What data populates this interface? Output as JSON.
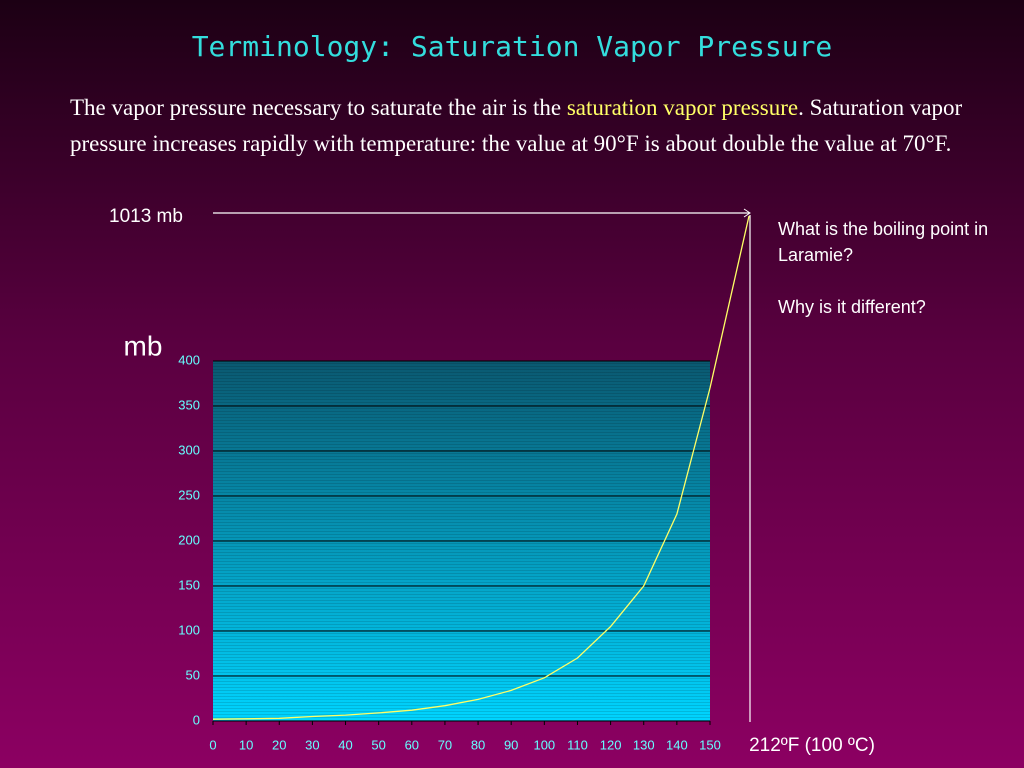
{
  "title": "Terminology: Saturation Vapor Pressure",
  "body": [
    "The vapor pressure necessary to saturate the air is the ",
    "saturation vapor pressure",
    ". Saturation vapor pressure increases rapidly with temperature: the value at 90°F is about double the value at 70°F."
  ],
  "notes": [
    "What is the boiling point in Laramie?",
    "Why is it different?"
  ],
  "chart_data": {
    "type": "line",
    "ylabel": "mb",
    "x": [
      0,
      10,
      20,
      30,
      40,
      50,
      60,
      70,
      80,
      90,
      100,
      110,
      120,
      130,
      140,
      150
    ],
    "values": [
      2,
      2.5,
      3,
      5,
      6.5,
      9,
      12,
      17,
      24,
      34,
      48,
      70,
      105,
      150,
      230,
      370
    ],
    "color": "#ffff66",
    "xlim": [
      0,
      150
    ],
    "ylim": [
      0,
      400
    ],
    "xticks": [
      0,
      10,
      20,
      30,
      40,
      50,
      60,
      70,
      80,
      90,
      100,
      110,
      120,
      130,
      140,
      150
    ],
    "yticks": [
      0,
      50,
      100,
      150,
      200,
      250,
      300,
      350,
      400
    ],
    "grid": true,
    "top_label": "1013 mb",
    "bottom_label": "212ºF (100 ºC)"
  }
}
